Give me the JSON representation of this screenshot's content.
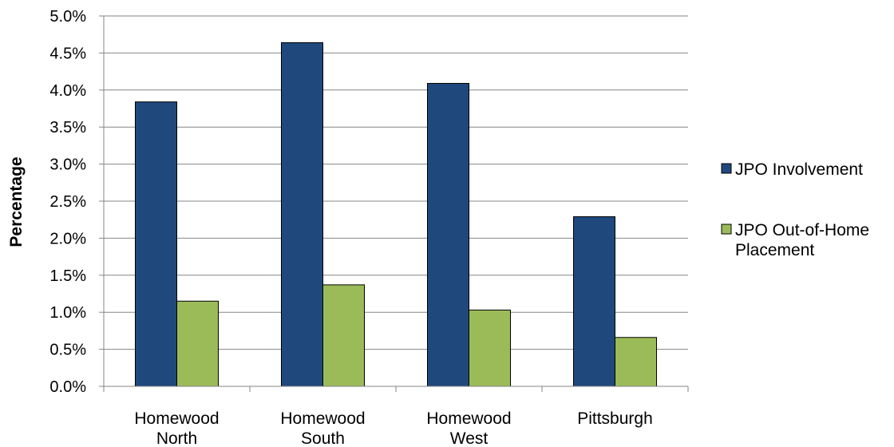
{
  "chart_data": {
    "type": "bar",
    "title": "",
    "xlabel": "",
    "ylabel": "Percentage",
    "ylim": [
      0,
      5.0
    ],
    "y_ticks": [
      "0.0%",
      "0.5%",
      "1.0%",
      "1.5%",
      "2.0%",
      "2.5%",
      "3.0%",
      "3.5%",
      "4.0%",
      "4.5%",
      "5.0%"
    ],
    "y_unit": "%",
    "grid": "horizontal",
    "legend_position": "right",
    "categories": [
      [
        "Homewood",
        "North"
      ],
      [
        "Homewood",
        "South"
      ],
      [
        "Homewood",
        "West"
      ],
      [
        "Pittsburgh"
      ]
    ],
    "series": [
      {
        "name": "JPO Involvement",
        "legend_lines": [
          "JPO Involvement"
        ],
        "color": "#1f497d",
        "values": [
          3.84,
          4.64,
          4.09,
          2.29
        ]
      },
      {
        "name": "JPO Out-of-Home Placement",
        "legend_lines": [
          "JPO Out-of-Home",
          "Placement"
        ],
        "color": "#9bbb59",
        "values": [
          1.15,
          1.37,
          1.03,
          0.66
        ]
      }
    ]
  }
}
